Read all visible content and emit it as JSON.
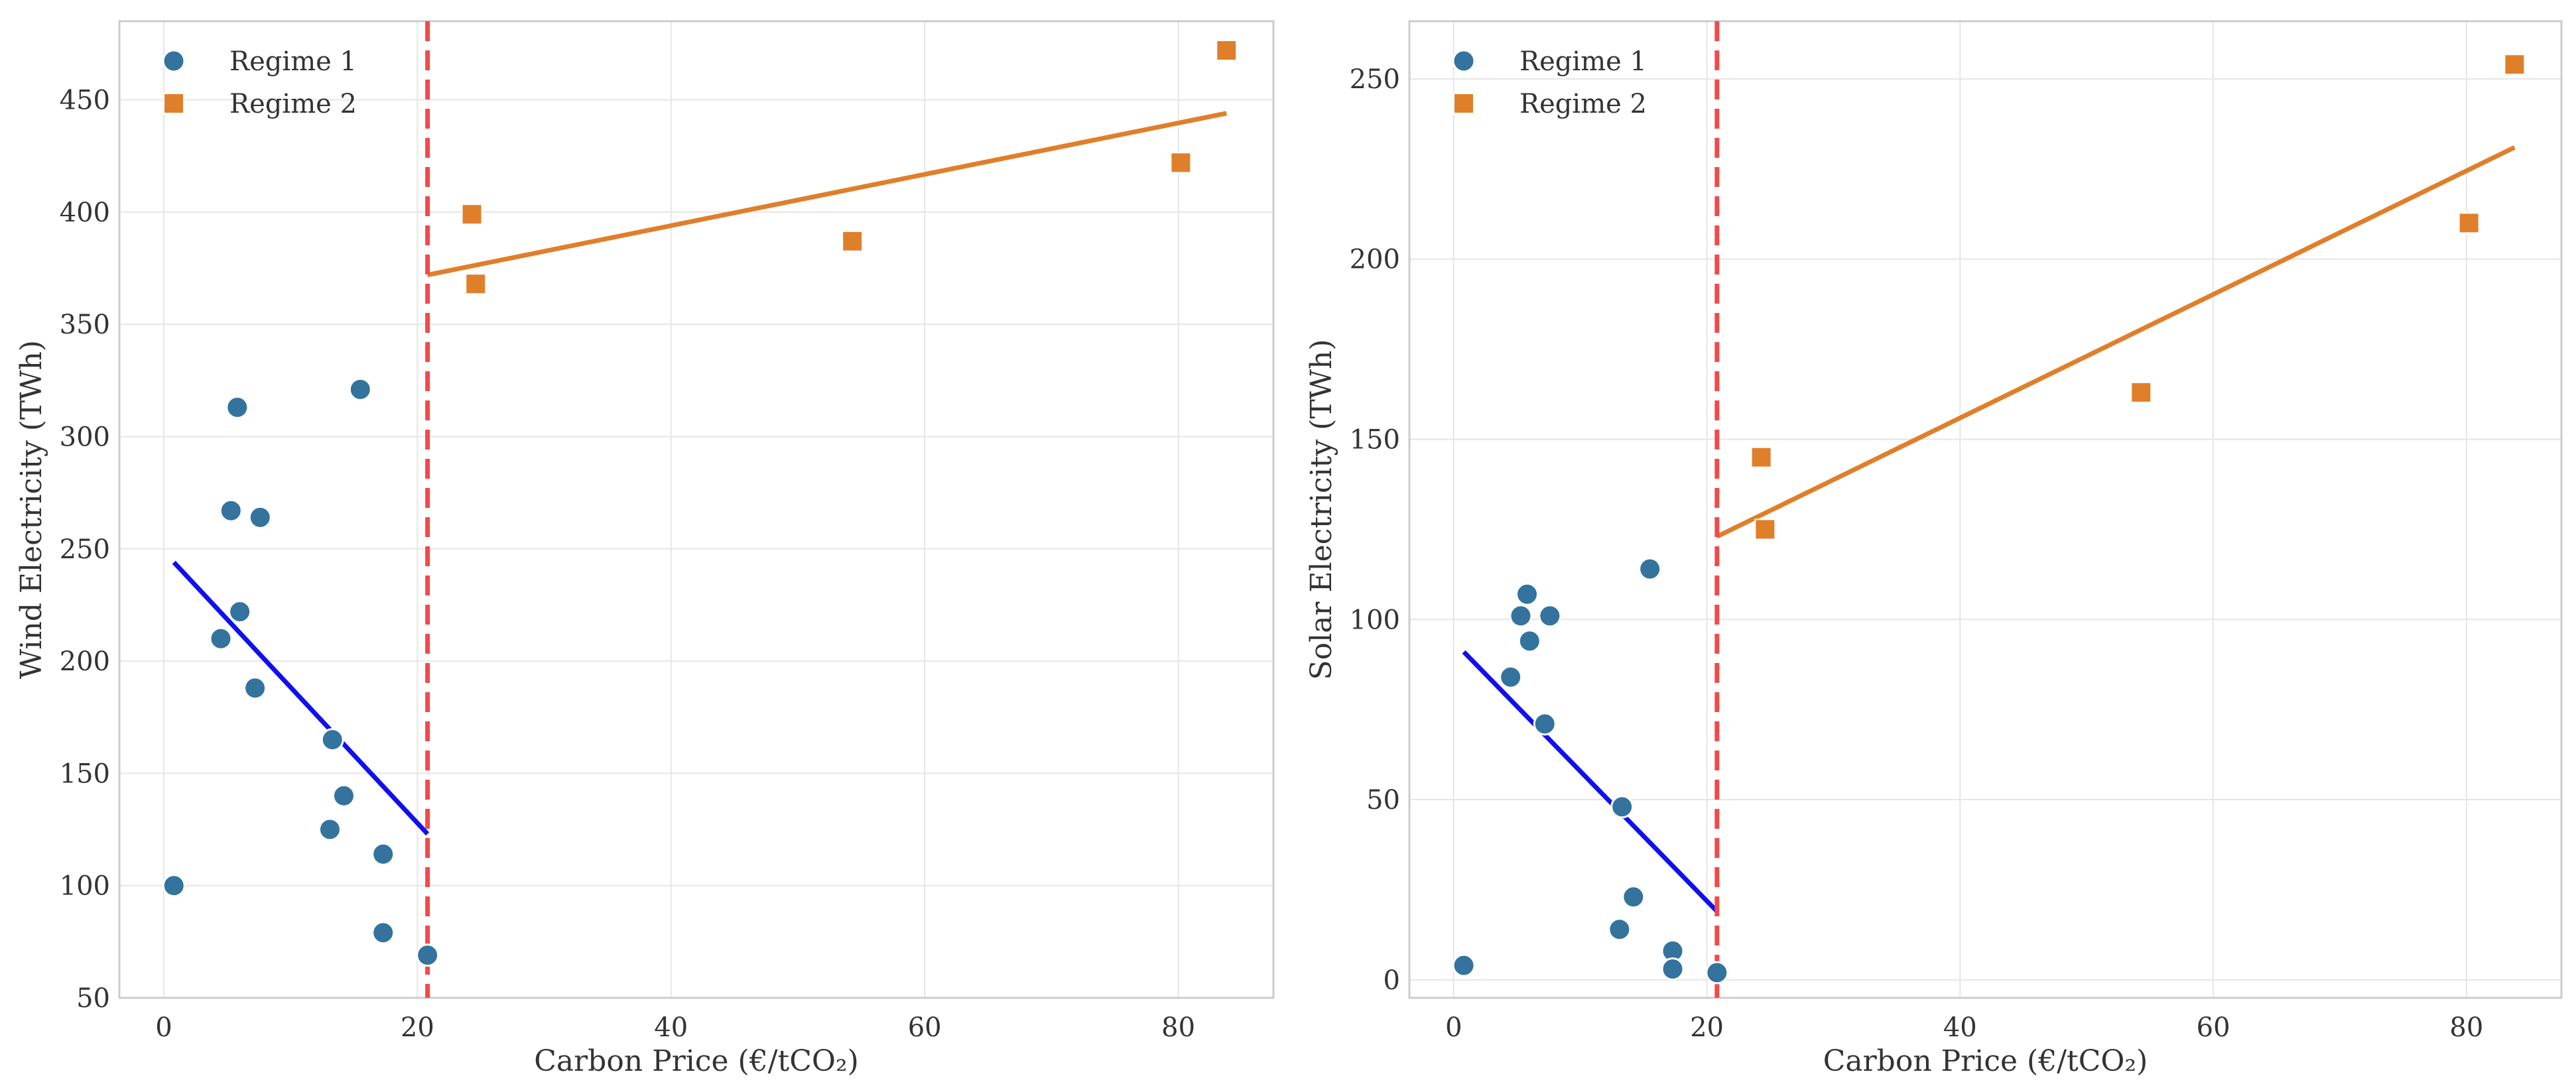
{
  "colors": {
    "regime1": "#33739e",
    "regime2": "#e07f2a",
    "fit1": "#1010ee",
    "fit2": "#e07f2a",
    "threshold": "#f04a4a"
  },
  "chart_data": [
    {
      "type": "scatter",
      "title": "",
      "xlabel": "Carbon Price (€/tCO₂)",
      "ylabel": "Wind Electricity (TWh)",
      "xlim": [
        -3.5,
        87.5
      ],
      "ylim": [
        50,
        485
      ],
      "xticks": [
        0,
        20,
        40,
        60,
        80
      ],
      "yticks": [
        50,
        100,
        150,
        200,
        250,
        300,
        350,
        400,
        450
      ],
      "grid": true,
      "legend_position": "top-left",
      "threshold_x": 20.8,
      "series": [
        {
          "name": "Regime 1",
          "marker": "circle",
          "points": [
            [
              0.8,
              100
            ],
            [
              4.5,
              210
            ],
            [
              5.3,
              267
            ],
            [
              5.8,
              313
            ],
            [
              6.0,
              222
            ],
            [
              7.2,
              188
            ],
            [
              7.6,
              264
            ],
            [
              13.1,
              125
            ],
            [
              13.3,
              165
            ],
            [
              14.2,
              140
            ],
            [
              15.5,
              321
            ],
            [
              17.3,
              114
            ],
            [
              17.3,
              79
            ],
            [
              20.8,
              69
            ]
          ],
          "fit": [
            [
              0.8,
              244
            ],
            [
              20.8,
              123
            ]
          ]
        },
        {
          "name": "Regime 2",
          "marker": "square",
          "points": [
            [
              24.3,
              399
            ],
            [
              24.6,
              368
            ],
            [
              54.3,
              387
            ],
            [
              80.2,
              422
            ],
            [
              83.8,
              472
            ]
          ],
          "fit": [
            [
              20.8,
              372
            ],
            [
              83.8,
              444
            ]
          ]
        }
      ]
    },
    {
      "type": "scatter",
      "title": "",
      "xlabel": "Carbon Price (€/tCO₂)",
      "ylabel": "Solar Electricity (TWh)",
      "xlim": [
        -3.5,
        87.5
      ],
      "ylim": [
        -5,
        266
      ],
      "xticks": [
        0,
        20,
        40,
        60,
        80
      ],
      "yticks": [
        0,
        50,
        100,
        150,
        200,
        250
      ],
      "grid": true,
      "legend_position": "top-left",
      "threshold_x": 20.8,
      "series": [
        {
          "name": "Regime 1",
          "marker": "circle",
          "points": [
            [
              0.8,
              4
            ],
            [
              4.5,
              84
            ],
            [
              5.3,
              101
            ],
            [
              5.8,
              107
            ],
            [
              6.0,
              94
            ],
            [
              7.2,
              71
            ],
            [
              7.6,
              101
            ],
            [
              13.1,
              14
            ],
            [
              13.3,
              48
            ],
            [
              14.2,
              23
            ],
            [
              15.5,
              114
            ],
            [
              17.3,
              8
            ],
            [
              17.3,
              3
            ],
            [
              20.8,
              2
            ]
          ],
          "fit": [
            [
              0.8,
              91
            ],
            [
              20.8,
              19
            ]
          ]
        },
        {
          "name": "Regime 2",
          "marker": "square",
          "points": [
            [
              24.3,
              145
            ],
            [
              24.6,
              125
            ],
            [
              54.3,
              163
            ],
            [
              80.2,
              210
            ],
            [
              83.8,
              254
            ]
          ],
          "fit": [
            [
              20.8,
              123
            ],
            [
              83.8,
              231
            ]
          ]
        }
      ]
    }
  ]
}
